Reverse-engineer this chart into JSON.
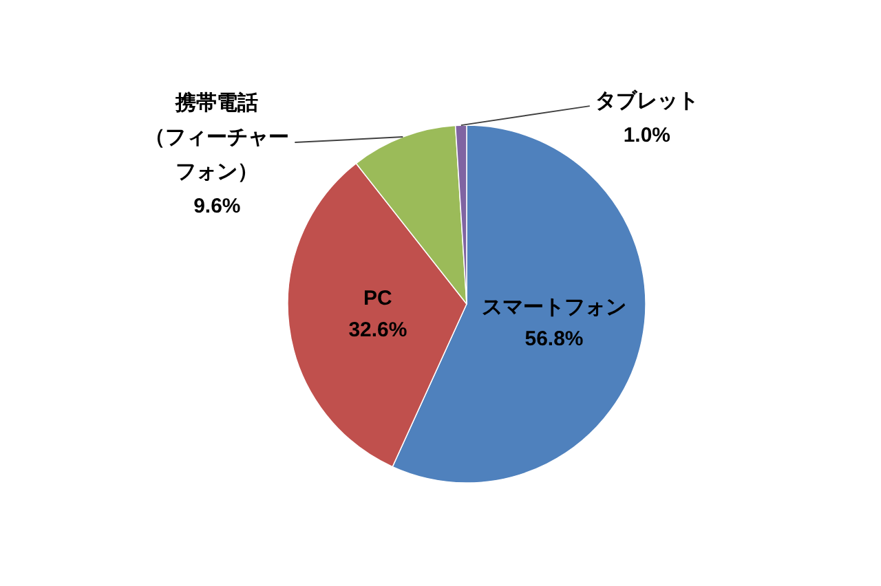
{
  "chart_data": {
    "type": "pie",
    "categories": [
      "スマートフォン",
      "PC",
      "携帯電話（フィーチャーフォン）",
      "タブレット"
    ],
    "values": [
      56.8,
      32.6,
      9.6,
      1.0
    ],
    "colors": [
      "#4f81bd",
      "#c0504d",
      "#9bbb59",
      "#8064a2"
    ],
    "value_labels": [
      "56.8%",
      "32.6%",
      "9.6%",
      "1.0%"
    ]
  }
}
